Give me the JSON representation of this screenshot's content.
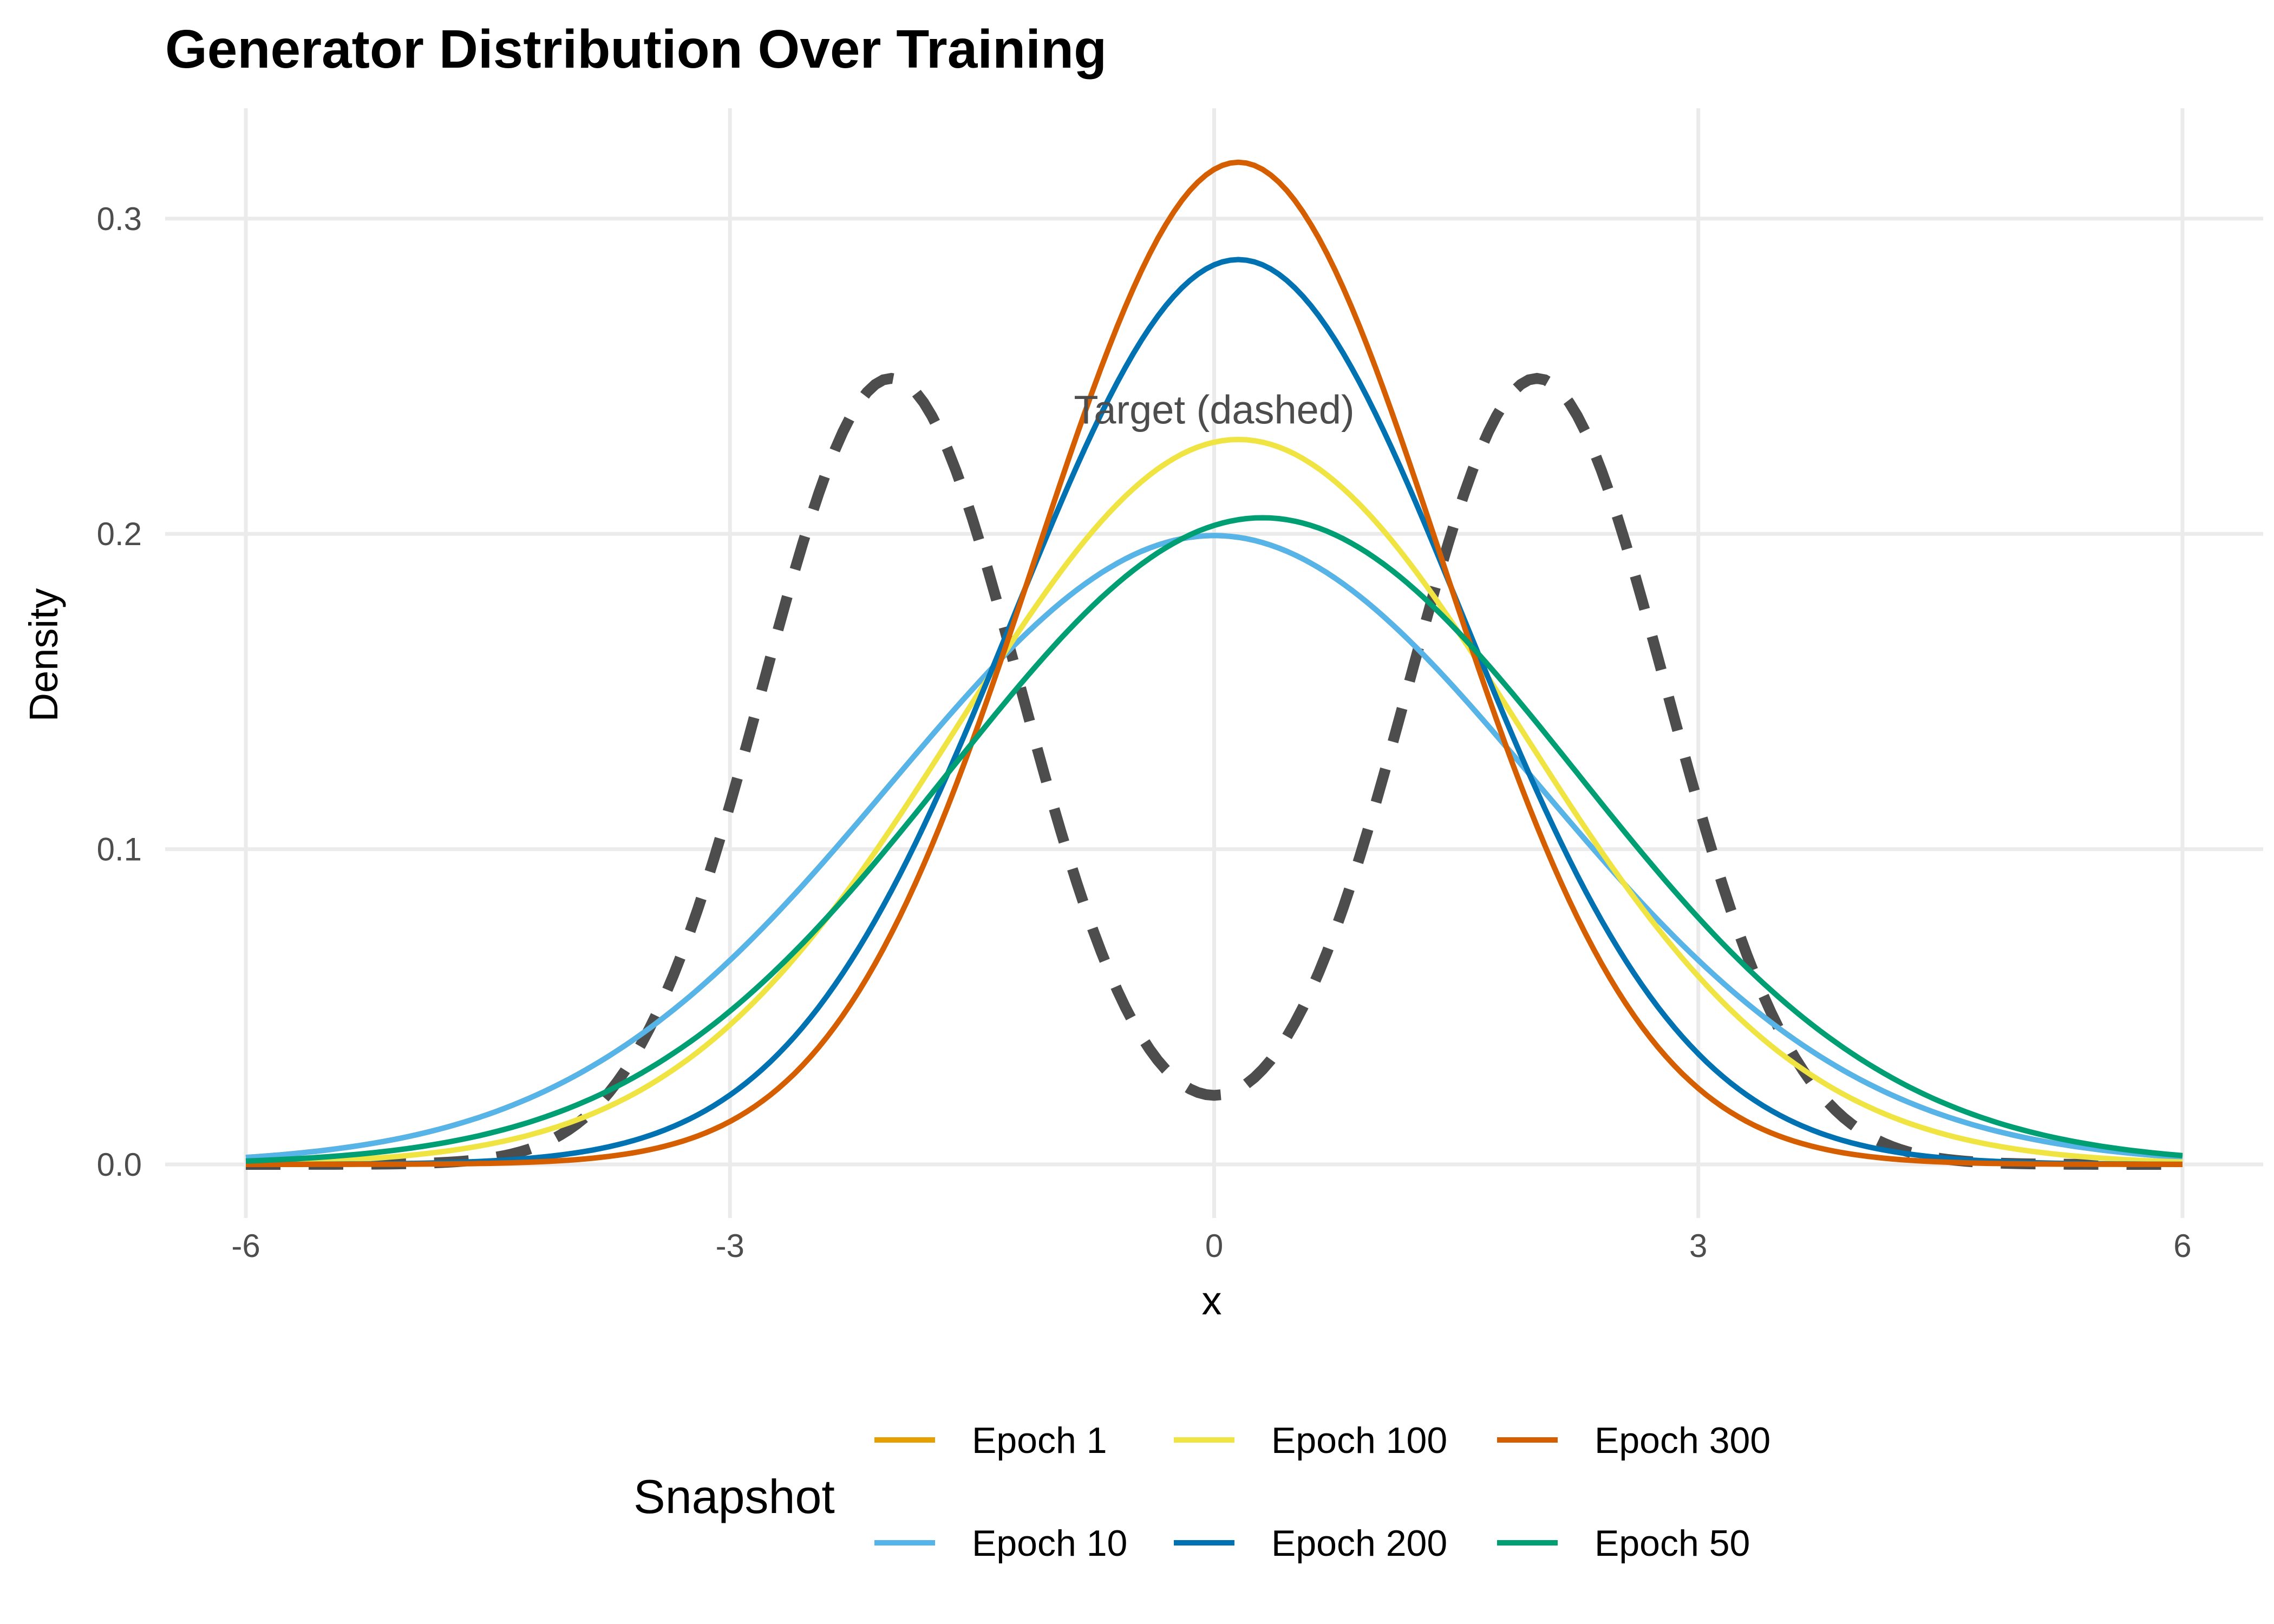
{
  "chart_data": {
    "type": "line",
    "title": "Generator Distribution Over Training",
    "xlabel": "x",
    "ylabel": "Density",
    "xlim": [
      -6.5,
      6.5
    ],
    "ylim": [
      -0.017,
      0.335
    ],
    "x_ticks": [
      -6,
      -3,
      0,
      3,
      6
    ],
    "x_tick_labels": [
      "-6",
      "-3",
      "0",
      "3",
      "6"
    ],
    "y_ticks": [
      0.0,
      0.1,
      0.2,
      0.3
    ],
    "y_tick_labels": [
      "0.0",
      "0.1",
      "0.2",
      "0.3"
    ],
    "grid": true,
    "legend": {
      "title": "Snapshot",
      "position": "bottom",
      "items": [
        "Epoch 1",
        "Epoch 10",
        "Epoch 100",
        "Epoch 200",
        "Epoch 300",
        "Epoch 50"
      ]
    },
    "annotation": {
      "text": "Target (dashed)",
      "x": 0,
      "y": 0.235
    },
    "x_range": [
      -6,
      6
    ],
    "target": {
      "name": "Target",
      "style": "dashed",
      "color": "#4d4d4d",
      "components": [
        {
          "mean": -2,
          "sd": 0.8,
          "weight": 0.5
        },
        {
          "mean": 2,
          "sd": 0.8,
          "weight": 0.5
        }
      ]
    },
    "series": [
      {
        "name": "Epoch 1",
        "color": "#E69F00",
        "mean": 0.0,
        "sd": 2.0
      },
      {
        "name": "Epoch 10",
        "color": "#56B4E9",
        "mean": 0.0,
        "sd": 2.0
      },
      {
        "name": "Epoch 100",
        "color": "#F0E442",
        "mean": 0.15,
        "sd": 1.735
      },
      {
        "name": "Epoch 200",
        "color": "#0072B2",
        "mean": 0.15,
        "sd": 1.39
      },
      {
        "name": "Epoch 300",
        "color": "#D55E00",
        "mean": 0.15,
        "sd": 1.255
      },
      {
        "name": "Epoch 50",
        "color": "#009E73",
        "mean": 0.3,
        "sd": 1.945
      }
    ]
  }
}
